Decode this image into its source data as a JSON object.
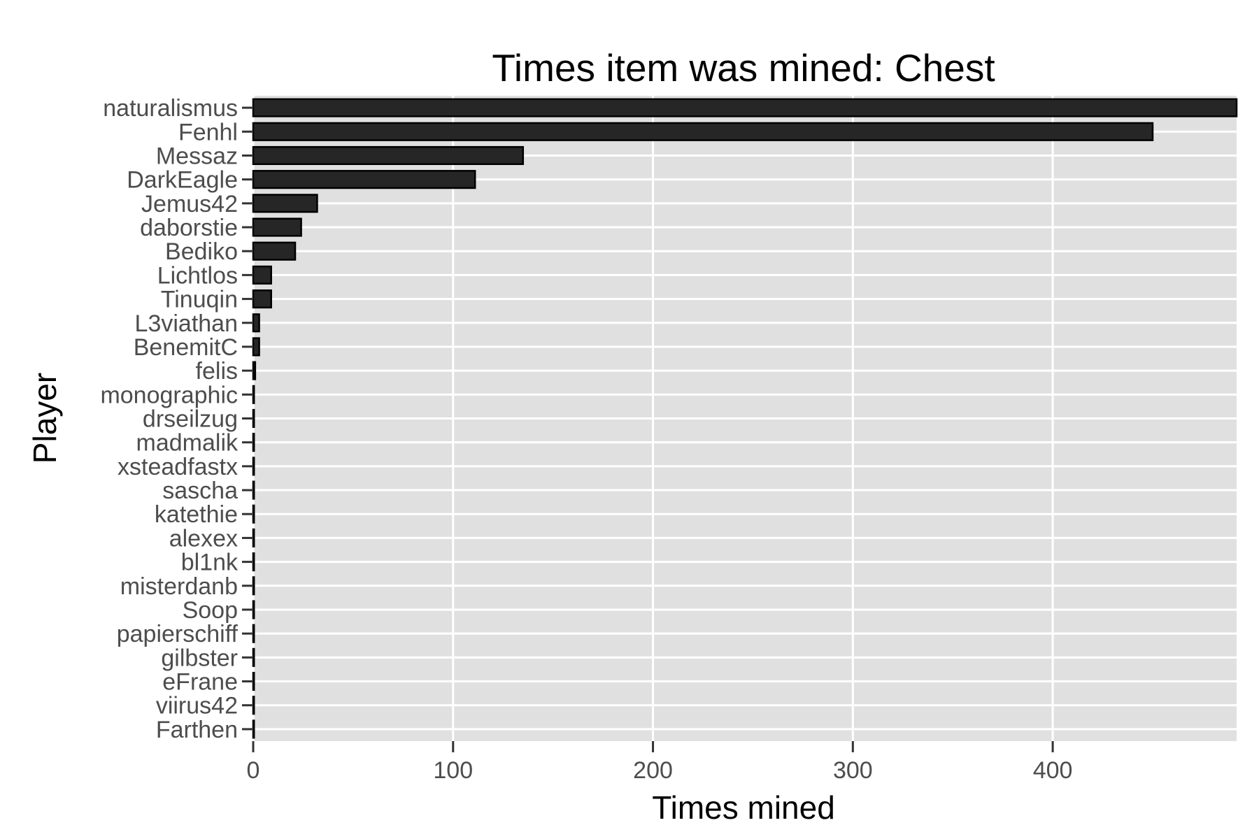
{
  "chart_data": {
    "type": "bar",
    "orientation": "horizontal",
    "title": "Times item was mined: Chest",
    "xlabel": "Times mined",
    "ylabel": "Player",
    "xlim": [
      0,
      492
    ],
    "xticks": [
      0,
      100,
      200,
      300,
      400
    ],
    "grid": true,
    "categories": [
      "naturalismus",
      "Fenhl",
      "Messaz",
      "DarkEagle",
      "Jemus42",
      "daborstie",
      "Bediko",
      "Lichtlos",
      "Tinuqin",
      "L3viathan",
      "BenemitC",
      "felis",
      "monographic",
      "drseilzug",
      "madmalik",
      "xsteadfastx",
      "sascha",
      "katethie",
      "alexex",
      "bl1nk",
      "misterdanb",
      "Soop",
      "papierschiff",
      "gilbster",
      "eFrane",
      "viirus42",
      "Farthen"
    ],
    "values": [
      492,
      450,
      135,
      111,
      32,
      24,
      21,
      9,
      9,
      3,
      3,
      1,
      0,
      0,
      0,
      0,
      0,
      0,
      0,
      0,
      0,
      0,
      0,
      0,
      0,
      0,
      0
    ],
    "colors": {
      "bar_fill": "#262626",
      "bar_stroke": "#000000",
      "panel": "#e0e0e0",
      "grid": "#ffffff"
    }
  }
}
